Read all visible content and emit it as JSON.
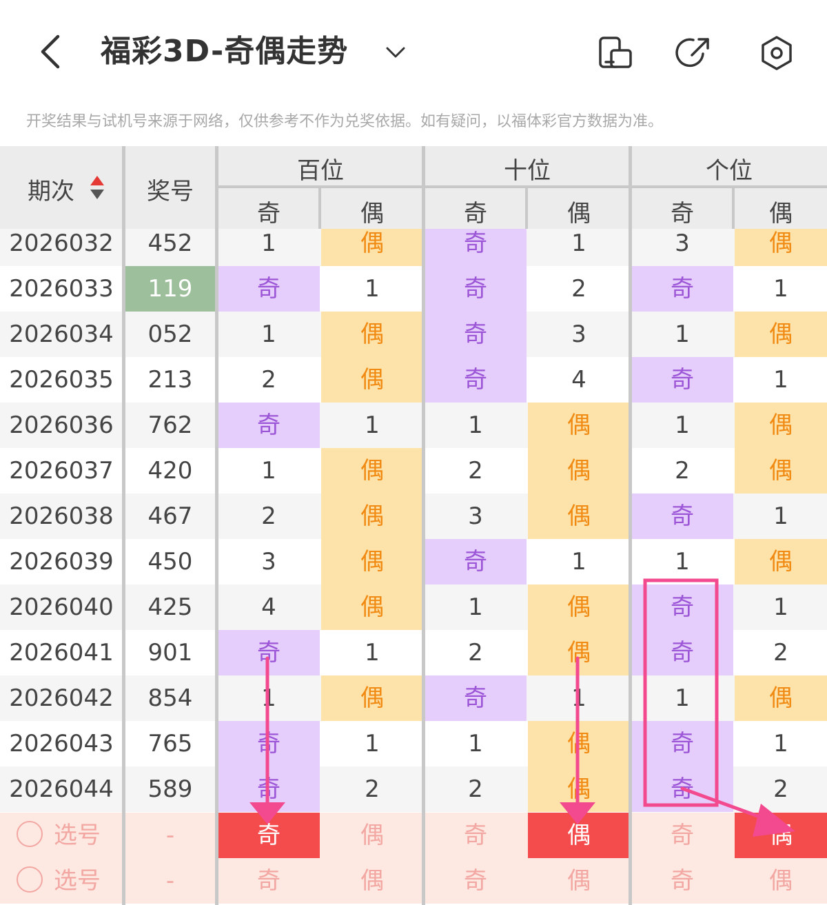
{
  "header": {
    "title": "福彩3D-奇偶走势",
    "notice": "开奖结果与试机号来源于网络，仅供参考不作为兑奖依据。如有疑问，以福体彩官方数据为准。"
  },
  "table": {
    "col_issue": "期次",
    "col_number": "奖号",
    "groups": [
      "百位",
      "十位",
      "个位"
    ],
    "odd": "奇",
    "even": "偶",
    "rows": [
      {
        "issue": "2026032",
        "num": "452",
        "highlight": false,
        "cells": [
          {
            "t": "1",
            "k": "n"
          },
          {
            "t": "偶",
            "k": "e"
          },
          {
            "t": "奇",
            "k": "o"
          },
          {
            "t": "1",
            "k": "n"
          },
          {
            "t": "3",
            "k": "n"
          },
          {
            "t": "偶",
            "k": "e"
          }
        ]
      },
      {
        "issue": "2026033",
        "num": "119",
        "highlight": true,
        "cells": [
          {
            "t": "奇",
            "k": "o"
          },
          {
            "t": "1",
            "k": "n"
          },
          {
            "t": "奇",
            "k": "o"
          },
          {
            "t": "2",
            "k": "n"
          },
          {
            "t": "奇",
            "k": "o"
          },
          {
            "t": "1",
            "k": "n"
          }
        ]
      },
      {
        "issue": "2026034",
        "num": "052",
        "highlight": false,
        "cells": [
          {
            "t": "1",
            "k": "n"
          },
          {
            "t": "偶",
            "k": "e"
          },
          {
            "t": "奇",
            "k": "o"
          },
          {
            "t": "3",
            "k": "n"
          },
          {
            "t": "1",
            "k": "n"
          },
          {
            "t": "偶",
            "k": "e"
          }
        ]
      },
      {
        "issue": "2026035",
        "num": "213",
        "highlight": false,
        "cells": [
          {
            "t": "2",
            "k": "n"
          },
          {
            "t": "偶",
            "k": "e"
          },
          {
            "t": "奇",
            "k": "o"
          },
          {
            "t": "4",
            "k": "n"
          },
          {
            "t": "奇",
            "k": "o"
          },
          {
            "t": "1",
            "k": "n"
          }
        ]
      },
      {
        "issue": "2026036",
        "num": "762",
        "highlight": false,
        "cells": [
          {
            "t": "奇",
            "k": "o"
          },
          {
            "t": "1",
            "k": "n"
          },
          {
            "t": "1",
            "k": "n"
          },
          {
            "t": "偶",
            "k": "e"
          },
          {
            "t": "1",
            "k": "n"
          },
          {
            "t": "偶",
            "k": "e"
          }
        ]
      },
      {
        "issue": "2026037",
        "num": "420",
        "highlight": false,
        "cells": [
          {
            "t": "1",
            "k": "n"
          },
          {
            "t": "偶",
            "k": "e"
          },
          {
            "t": "2",
            "k": "n"
          },
          {
            "t": "偶",
            "k": "e"
          },
          {
            "t": "2",
            "k": "n"
          },
          {
            "t": "偶",
            "k": "e"
          }
        ]
      },
      {
        "issue": "2026038",
        "num": "467",
        "highlight": false,
        "cells": [
          {
            "t": "2",
            "k": "n"
          },
          {
            "t": "偶",
            "k": "e"
          },
          {
            "t": "3",
            "k": "n"
          },
          {
            "t": "偶",
            "k": "e"
          },
          {
            "t": "奇",
            "k": "o"
          },
          {
            "t": "1",
            "k": "n"
          }
        ]
      },
      {
        "issue": "2026039",
        "num": "450",
        "highlight": false,
        "cells": [
          {
            "t": "3",
            "k": "n"
          },
          {
            "t": "偶",
            "k": "e"
          },
          {
            "t": "奇",
            "k": "o"
          },
          {
            "t": "1",
            "k": "n"
          },
          {
            "t": "1",
            "k": "n"
          },
          {
            "t": "偶",
            "k": "e"
          }
        ]
      },
      {
        "issue": "2026040",
        "num": "425",
        "highlight": false,
        "cells": [
          {
            "t": "4",
            "k": "n"
          },
          {
            "t": "偶",
            "k": "e"
          },
          {
            "t": "1",
            "k": "n"
          },
          {
            "t": "偶",
            "k": "e"
          },
          {
            "t": "奇",
            "k": "o"
          },
          {
            "t": "1",
            "k": "n"
          }
        ]
      },
      {
        "issue": "2026041",
        "num": "901",
        "highlight": false,
        "cells": [
          {
            "t": "奇",
            "k": "o"
          },
          {
            "t": "1",
            "k": "n"
          },
          {
            "t": "2",
            "k": "n"
          },
          {
            "t": "偶",
            "k": "e"
          },
          {
            "t": "奇",
            "k": "o"
          },
          {
            "t": "2",
            "k": "n"
          }
        ]
      },
      {
        "issue": "2026042",
        "num": "854",
        "highlight": false,
        "cells": [
          {
            "t": "1",
            "k": "n"
          },
          {
            "t": "偶",
            "k": "e"
          },
          {
            "t": "奇",
            "k": "o"
          },
          {
            "t": "1",
            "k": "n"
          },
          {
            "t": "1",
            "k": "n"
          },
          {
            "t": "偶",
            "k": "e"
          }
        ]
      },
      {
        "issue": "2026043",
        "num": "765",
        "highlight": false,
        "cells": [
          {
            "t": "奇",
            "k": "o"
          },
          {
            "t": "1",
            "k": "n"
          },
          {
            "t": "1",
            "k": "n"
          },
          {
            "t": "偶",
            "k": "e"
          },
          {
            "t": "奇",
            "k": "o"
          },
          {
            "t": "1",
            "k": "n"
          }
        ]
      },
      {
        "issue": "2026044",
        "num": "589",
        "highlight": false,
        "cells": [
          {
            "t": "奇",
            "k": "o"
          },
          {
            "t": "2",
            "k": "n"
          },
          {
            "t": "2",
            "k": "n"
          },
          {
            "t": "偶",
            "k": "e"
          },
          {
            "t": "奇",
            "k": "o"
          },
          {
            "t": "2",
            "k": "n"
          }
        ]
      }
    ],
    "picks": [
      {
        "label": "选号",
        "dash": "-",
        "cells": [
          {
            "t": "奇",
            "sel": true
          },
          {
            "t": "偶",
            "sel": false
          },
          {
            "t": "奇",
            "sel": false
          },
          {
            "t": "偶",
            "sel": true
          },
          {
            "t": "奇",
            "sel": false
          },
          {
            "t": "偶",
            "sel": true
          }
        ]
      },
      {
        "label": "选号",
        "dash": "-",
        "cells": [
          {
            "t": "奇",
            "sel": false
          },
          {
            "t": "偶",
            "sel": false
          },
          {
            "t": "奇",
            "sel": false
          },
          {
            "t": "偶",
            "sel": false
          },
          {
            "t": "奇",
            "sel": false
          },
          {
            "t": "偶",
            "sel": false
          }
        ]
      }
    ]
  },
  "colors": {
    "odd_bg": "#e5cefb",
    "odd_text": "#9b55d6",
    "even_bg": "#fde3a9",
    "even_text": "#f18a12",
    "selected": "#f44c4c",
    "annotation": "#f2498f"
  }
}
